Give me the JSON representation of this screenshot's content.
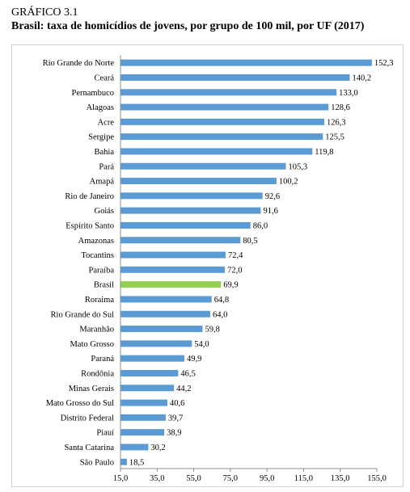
{
  "figure": {
    "label": "GRÁFICO 3.1",
    "title": "Brasil: taxa de homicídios de jovens, por grupo de 100 mil, por UF (2017)"
  },
  "colors": {
    "bar": "#5b9bd5",
    "highlight": "#92d050",
    "axis": "#8c8c8c",
    "frame": "#d0d0d0"
  },
  "chart_data": {
    "type": "bar",
    "orientation": "horizontal",
    "categories": [
      "Rio Grande do Norte",
      "Ceará",
      "Pernambuco",
      "Alagoas",
      "Acre",
      "Sergipe",
      "Bahia",
      "Pará",
      "Amapá",
      "Rio de Janeiro",
      "Goiás",
      "Espírito Santo",
      "Amazonas",
      "Tocantins",
      "Paraíba",
      "Brasil",
      "Roraima",
      "Rio Grande do Sul",
      "Maranhão",
      "Mato Grosso",
      "Paraná",
      "Rondônia",
      "Minas Gerais",
      "Mato Grosso do Sul",
      "Distrito Federal",
      "Piauí",
      "Santa Catarina",
      "São Paulo"
    ],
    "values": [
      152.3,
      140.2,
      133.0,
      128.6,
      126.3,
      125.5,
      119.8,
      105.3,
      100.2,
      92.6,
      91.6,
      86.0,
      80.5,
      72.4,
      72.0,
      69.9,
      64.8,
      64.0,
      59.8,
      54.0,
      49.9,
      46.5,
      44.2,
      40.6,
      39.7,
      38.9,
      30.2,
      18.5
    ],
    "value_labels": [
      "152,3",
      "140,2",
      "133,0",
      "128,6",
      "126,3",
      "125,5",
      "119,8",
      "105,3",
      "100,2",
      "92,6",
      "91,6",
      "86,0",
      "80,5",
      "72,4",
      "72,0",
      "69,9",
      "64,8",
      "64,0",
      "59,8",
      "54,0",
      "49,9",
      "46,5",
      "44,2",
      "40,6",
      "39,7",
      "38,9",
      "30,2",
      "18,5"
    ],
    "highlight_category": "Brasil",
    "xlim": [
      15,
      155
    ],
    "xticks": [
      15,
      35,
      55,
      75,
      95,
      115,
      135,
      155
    ],
    "xtick_labels": [
      "15,0",
      "35,0",
      "55,0",
      "75,0",
      "95,0",
      "115,0",
      "135,0",
      "155,0"
    ],
    "grid": false,
    "legend": "none"
  }
}
